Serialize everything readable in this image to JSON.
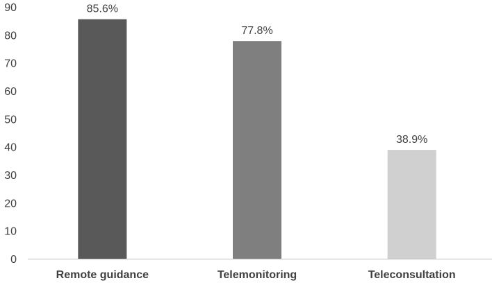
{
  "chart_data": {
    "type": "bar",
    "title": "",
    "xlabel": "",
    "ylabel": "",
    "ylim": [
      0,
      90
    ],
    "yticks": [
      0,
      10,
      20,
      30,
      40,
      50,
      60,
      70,
      80,
      90
    ],
    "categories": [
      "Remote guidance",
      "Telemonitoring",
      "Teleconsultation"
    ],
    "values": [
      85.6,
      77.8,
      38.9
    ],
    "data_labels": [
      "85.6%",
      "77.8%",
      "38.9%"
    ],
    "bar_colors": [
      "#595959",
      "#7f7f7f",
      "#d0d0d0"
    ],
    "grid": false,
    "legend": "none"
  }
}
